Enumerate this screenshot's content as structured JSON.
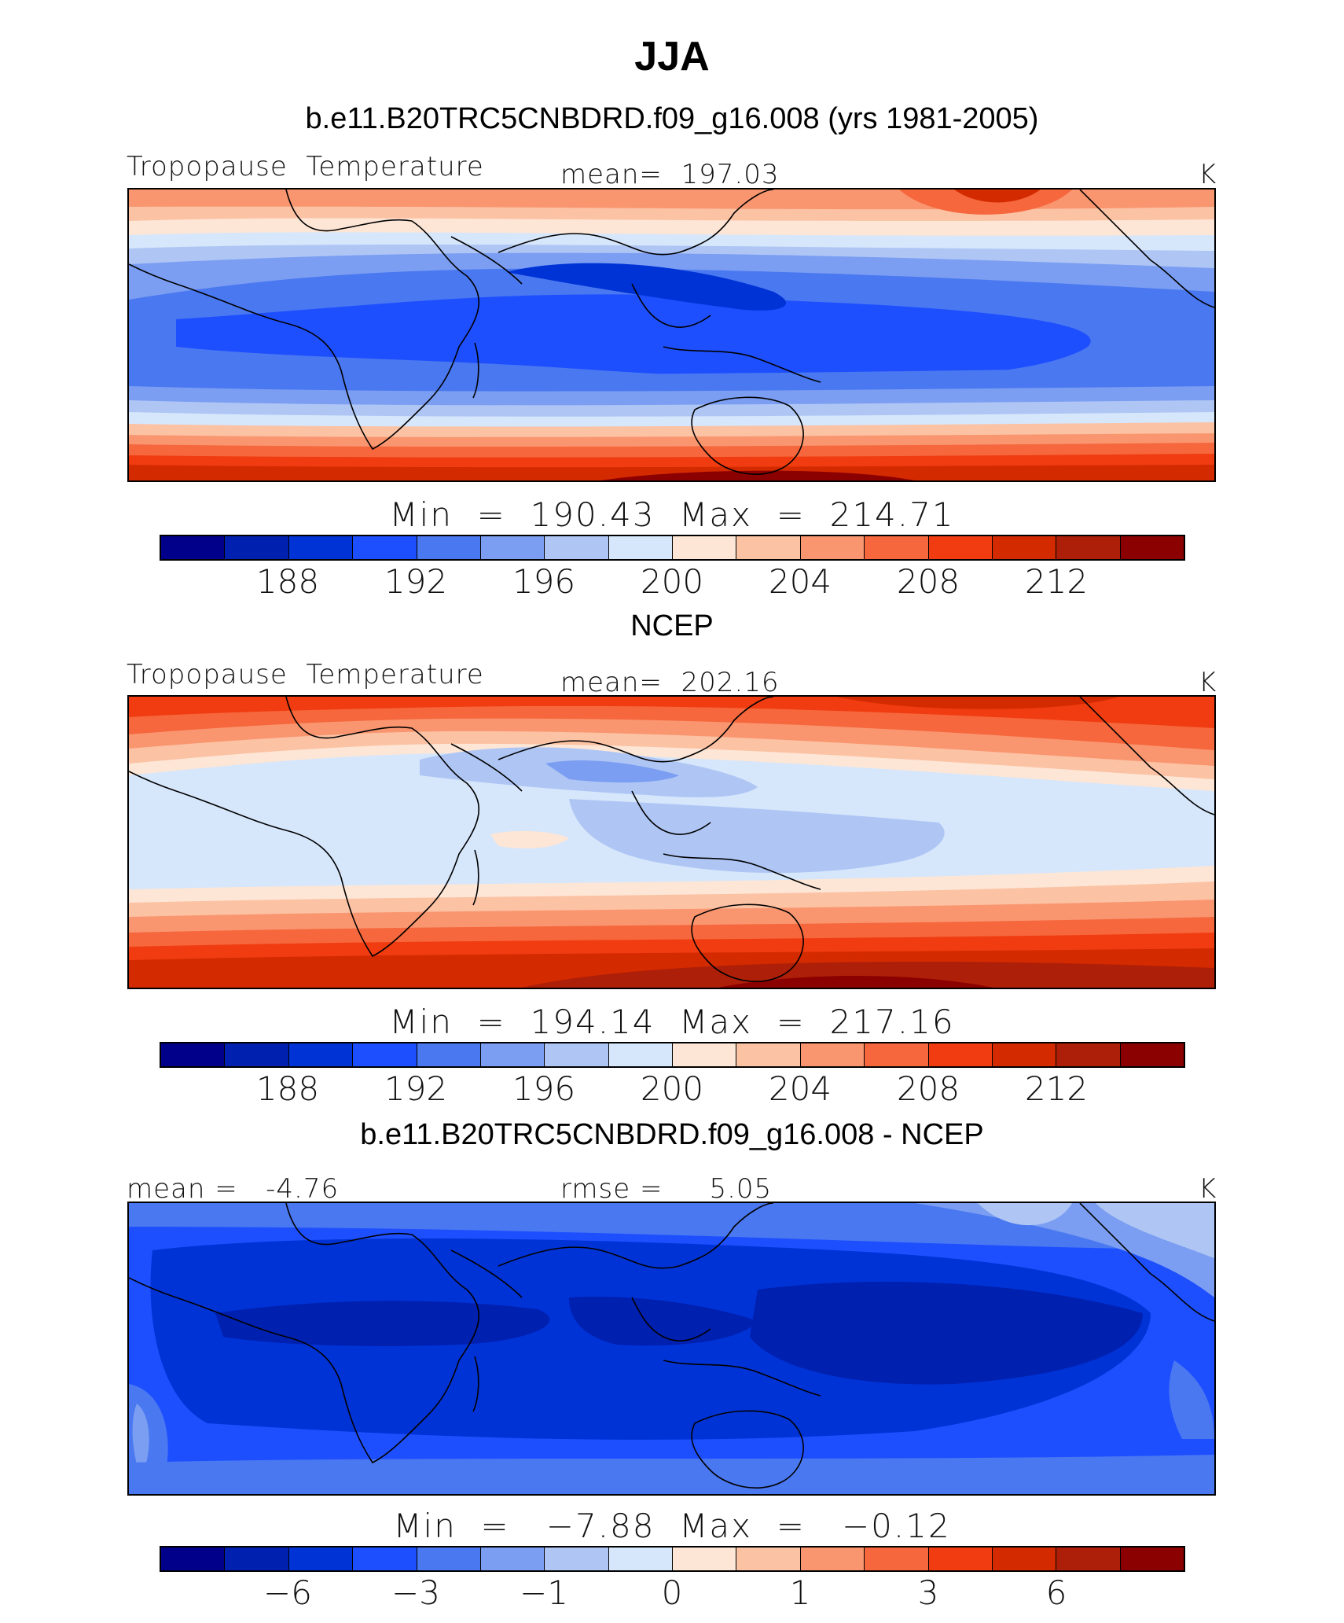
{
  "season": "JJA",
  "colors": [
    "#00008b",
    "#0020b0",
    "#0033d6",
    "#1e4fff",
    "#4a78f0",
    "#7b9ef2",
    "#afc6f5",
    "#d6e6fb",
    "#fde6d6",
    "#fcc2a4",
    "#f99670",
    "#f6673d",
    "#f03c10",
    "#d42a00",
    "#ad1f08",
    "#8b0000"
  ],
  "panels": [
    {
      "title": "b.e11.B20TRC5CNBDRD.f09_g16.008 (yrs 1981-2005)",
      "left_label": "Tropopause  Temperature",
      "center_label": "mean=  197.03",
      "units": "K",
      "minmax": "Min  =  190.43  Max  =  214.71",
      "ticks": [
        "188",
        "192",
        "196",
        "200",
        "204",
        "208",
        "212"
      ]
    },
    {
      "title": "NCEP",
      "left_label": "Tropopause  Temperature",
      "center_label": "mean=  202.16",
      "units": "K",
      "minmax": "Min  =  194.14  Max  =  217.16",
      "ticks": [
        "188",
        "192",
        "196",
        "200",
        "204",
        "208",
        "212"
      ]
    },
    {
      "title": "b.e11.B20TRC5CNBDRD.f09_g16.008 - NCEP",
      "left_label": "mean =   -4.76",
      "center_label": "rmse =     5.05",
      "units": "K",
      "minmax": "Min  =   −7.88  Max  =   −0.12",
      "ticks": [
        "−6",
        "−3",
        "−1",
        "0",
        "1",
        "3",
        "6"
      ]
    }
  ]
}
